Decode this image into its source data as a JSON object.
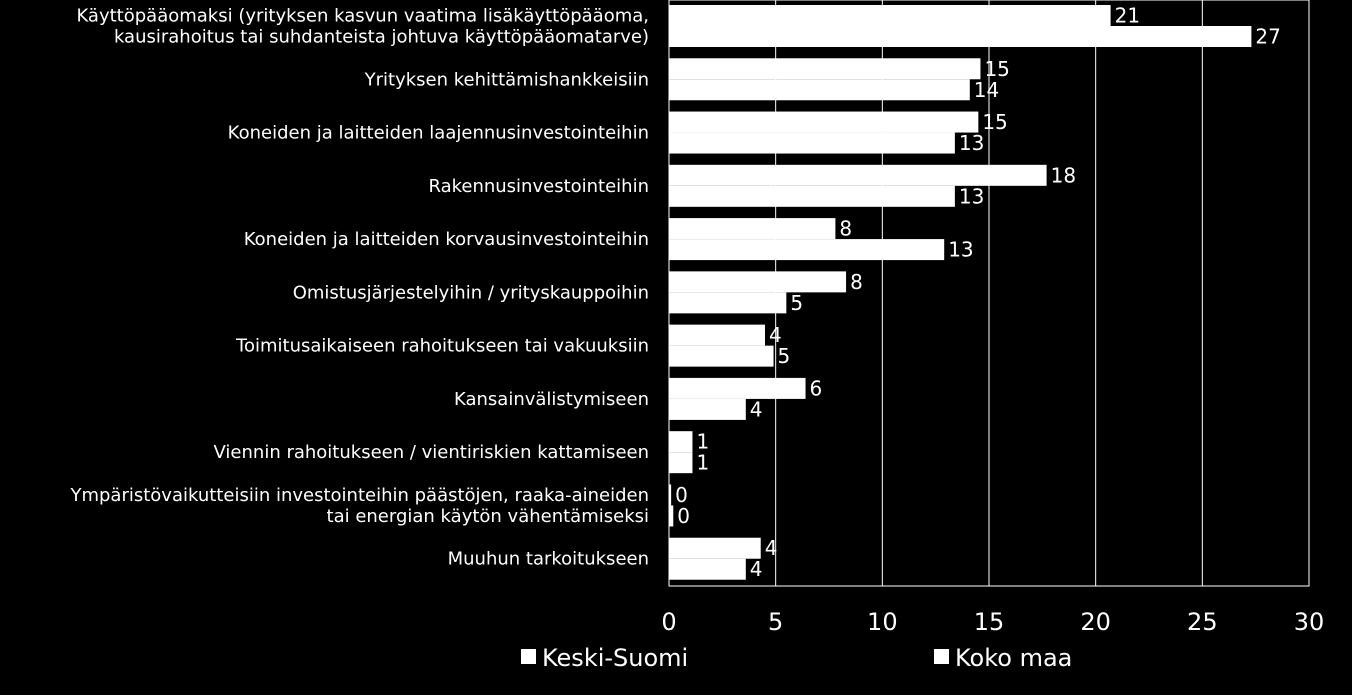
{
  "chart_data": {
    "type": "bar",
    "orientation": "horizontal",
    "categories": [
      [
        "Käyttöpääomaksi (yrityksen kasvun vaatima lisäkäyttöpääoma,",
        "kausirahoitus tai suhdanteista johtuva käyttöpääomatarve)"
      ],
      [
        "Yrityksen kehittämishankkeisiin"
      ],
      [
        "Koneiden ja laitteiden laajennusinvestointeihin"
      ],
      [
        "Rakennusinvestointeihin"
      ],
      [
        "Koneiden ja laitteiden korvausinvestointeihin"
      ],
      [
        "Omistusjärjestelyihin / yrityskauppoihin"
      ],
      [
        "Toimitusaikaiseen rahoitukseen tai vakuuksiin"
      ],
      [
        "Kansainvälistymiseen"
      ],
      [
        "Viennin rahoitukseen / vientiriskien kattamiseen"
      ],
      [
        "Ympäristövaikutteisiin investointeihin päästöjen, raaka-aineiden",
        "tai energian käytön vähentämiseksi"
      ],
      [
        "Muuhun tarkoitukseen"
      ]
    ],
    "series": [
      {
        "name": "Keski-Suomi",
        "values": [
          20.7,
          14.6,
          14.5,
          17.7,
          7.8,
          8.3,
          4.5,
          6.4,
          1.1,
          0.1,
          4.3
        ],
        "labels": [
          "21",
          "15",
          "15",
          "18",
          "8",
          "8",
          "4",
          "6",
          "1",
          "0",
          "4"
        ]
      },
      {
        "name": "Koko maa",
        "values": [
          27.3,
          14.1,
          13.4,
          13.4,
          12.9,
          5.5,
          4.9,
          3.6,
          1.1,
          0.2,
          3.6
        ],
        "labels": [
          "27",
          "14",
          "13",
          "13",
          "13",
          "5",
          "5",
          "4",
          "1",
          "0",
          "4"
        ]
      }
    ],
    "xlim": [
      0,
      30
    ],
    "xticks": [
      "0",
      "5",
      "10",
      "15",
      "20",
      "25",
      "30"
    ],
    "grid": true,
    "legend_position": "bottom",
    "colors": {
      "background": "#000000",
      "bar": "#ffffff",
      "text": "#ffffff",
      "grid": "#ffffff"
    }
  }
}
